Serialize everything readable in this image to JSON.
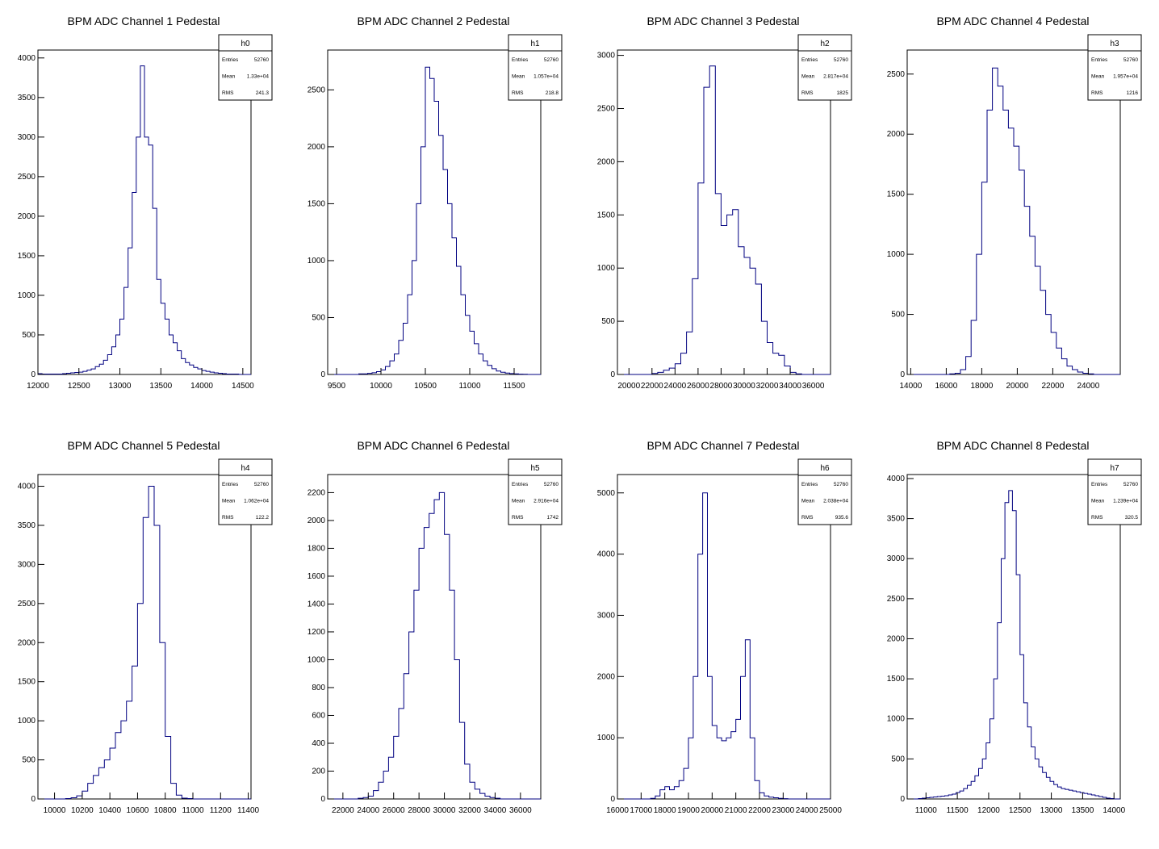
{
  "chart_data": [
    {
      "type": "histogram",
      "title": "BPM ADC Channel 1 Pedestal",
      "stats": {
        "name": "h0",
        "entries_label": "Entries",
        "entries": "52760",
        "mean_label": "Mean",
        "mean": "1.33e+04",
        "rms_label": "RMS",
        "rms": "241.3"
      },
      "xlim": [
        12000,
        14600
      ],
      "ylim": [
        0,
        4100
      ],
      "xticks": [
        12000,
        12500,
        13000,
        13500,
        14000,
        14500
      ],
      "yticks": [
        0,
        500,
        1000,
        1500,
        2000,
        2500,
        3000,
        3500,
        4000
      ],
      "x": [
        12000,
        12050,
        12100,
        12150,
        12200,
        12250,
        12300,
        12350,
        12400,
        12450,
        12500,
        12550,
        12600,
        12650,
        12700,
        12750,
        12800,
        12850,
        12900,
        12950,
        13000,
        13050,
        13100,
        13150,
        13200,
        13250,
        13300,
        13350,
        13400,
        13450,
        13500,
        13550,
        13600,
        13650,
        13700,
        13750,
        13800,
        13850,
        13900,
        13950,
        14000,
        14050,
        14100,
        14150,
        14200,
        14250,
        14300,
        14350,
        14400,
        14450,
        14500,
        14550
      ],
      "values": [
        10,
        5,
        5,
        5,
        5,
        5,
        10,
        15,
        20,
        25,
        30,
        40,
        55,
        70,
        100,
        130,
        180,
        250,
        350,
        500,
        700,
        1100,
        1600,
        2300,
        3000,
        3900,
        3000,
        2900,
        2100,
        1200,
        900,
        700,
        500,
        400,
        300,
        200,
        150,
        120,
        90,
        70,
        50,
        40,
        30,
        20,
        15,
        10,
        5,
        5,
        5,
        0,
        0,
        0
      ]
    },
    {
      "type": "histogram",
      "title": "BPM ADC Channel 2 Pedestal",
      "stats": {
        "name": "h1",
        "entries_label": "Entries",
        "entries": "52760",
        "mean_label": "Mean",
        "mean": "1.057e+04",
        "rms_label": "RMS",
        "rms": "218.8"
      },
      "xlim": [
        9400,
        11800
      ],
      "ylim": [
        0,
        2850
      ],
      "xticks": [
        9500,
        10000,
        10500,
        11000,
        11500
      ],
      "yticks": [
        0,
        500,
        1000,
        1500,
        2000,
        2500
      ],
      "x": [
        9400,
        9450,
        9500,
        9550,
        9600,
        9650,
        9700,
        9750,
        9800,
        9850,
        9900,
        9950,
        10000,
        10050,
        10100,
        10150,
        10200,
        10250,
        10300,
        10350,
        10400,
        10450,
        10500,
        10550,
        10600,
        10650,
        10700,
        10750,
        10800,
        10850,
        10900,
        10950,
        11000,
        11050,
        11100,
        11150,
        11200,
        11250,
        11300,
        11350,
        11400,
        11450,
        11500,
        11550,
        11600,
        11650,
        11700,
        11750
      ],
      "values": [
        0,
        0,
        0,
        0,
        0,
        0,
        0,
        5,
        5,
        10,
        15,
        25,
        40,
        70,
        120,
        180,
        300,
        450,
        700,
        1000,
        1500,
        2000,
        2700,
        2600,
        2400,
        2100,
        1800,
        1500,
        1200,
        950,
        700,
        520,
        380,
        270,
        180,
        120,
        80,
        50,
        30,
        20,
        12,
        8,
        5,
        3,
        2,
        0,
        0,
        0
      ]
    },
    {
      "type": "histogram",
      "title": "BPM ADC Channel 3 Pedestal",
      "stats": {
        "name": "h2",
        "entries_label": "Entries",
        "entries": "52760",
        "mean_label": "Mean",
        "mean": "2.817e+04",
        "rms_label": "RMS",
        "rms": "1825"
      },
      "xlim": [
        19000,
        37500
      ],
      "ylim": [
        0,
        3050
      ],
      "xticks": [
        20000,
        22000,
        24000,
        26000,
        28000,
        30000,
        32000,
        34000,
        36000
      ],
      "yticks": [
        0,
        500,
        1000,
        1500,
        2000,
        2500,
        3000
      ],
      "x": [
        19000,
        19500,
        20000,
        20500,
        21000,
        21500,
        22000,
        22500,
        23000,
        23500,
        24000,
        24500,
        25000,
        25500,
        26000,
        26500,
        27000,
        27500,
        28000,
        28500,
        29000,
        29500,
        30000,
        30500,
        31000,
        31500,
        32000,
        32500,
        33000,
        33500,
        34000,
        34500,
        35000,
        35500,
        36000,
        36500,
        37000
      ],
      "values": [
        0,
        0,
        0,
        0,
        0,
        0,
        10,
        20,
        40,
        60,
        100,
        200,
        400,
        900,
        1800,
        2700,
        2900,
        1700,
        1400,
        1500,
        1550,
        1200,
        1100,
        1000,
        850,
        500,
        300,
        200,
        180,
        80,
        20,
        5,
        0,
        0,
        0,
        0,
        0
      ]
    },
    {
      "type": "histogram",
      "title": "BPM ADC Channel 4 Pedestal",
      "stats": {
        "name": "h3",
        "entries_label": "Entries",
        "entries": "52760",
        "mean_label": "Mean",
        "mean": "1.957e+04",
        "rms_label": "RMS",
        "rms": "1216"
      },
      "xlim": [
        13800,
        25800
      ],
      "ylim": [
        0,
        2700
      ],
      "xticks": [
        14000,
        16000,
        18000,
        20000,
        22000,
        24000
      ],
      "yticks": [
        0,
        500,
        1000,
        1500,
        2000,
        2500
      ],
      "x": [
        13800,
        14100,
        14400,
        14700,
        15000,
        15300,
        15600,
        15900,
        16200,
        16500,
        16800,
        17100,
        17400,
        17700,
        18000,
        18300,
        18600,
        18900,
        19200,
        19500,
        19800,
        20100,
        20400,
        20700,
        21000,
        21300,
        21600,
        21900,
        22200,
        22500,
        22800,
        23100,
        23400,
        23700,
        24000,
        24300,
        24600,
        24900,
        25200,
        25500
      ],
      "values": [
        0,
        0,
        0,
        0,
        0,
        0,
        0,
        0,
        5,
        10,
        40,
        150,
        450,
        1000,
        1600,
        2200,
        2550,
        2400,
        2200,
        2050,
        1900,
        1700,
        1400,
        1150,
        900,
        700,
        500,
        350,
        220,
        130,
        70,
        40,
        20,
        10,
        5,
        0,
        0,
        0,
        0,
        0
      ]
    },
    {
      "type": "histogram",
      "title": "BPM ADC Channel 5 Pedestal",
      "stats": {
        "name": "h4",
        "entries_label": "Entries",
        "entries": "52760",
        "mean_label": "Mean",
        "mean": "1.062e+04",
        "rms_label": "RMS",
        "rms": "122.2"
      },
      "xlim": [
        9880,
        11420
      ],
      "ylim": [
        0,
        4150
      ],
      "xticks": [
        10000,
        10200,
        10400,
        10600,
        10800,
        11000,
        11200,
        11400
      ],
      "yticks": [
        0,
        500,
        1000,
        1500,
        2000,
        2500,
        3000,
        3500,
        4000
      ],
      "x": [
        9880,
        9920,
        9960,
        10000,
        10040,
        10080,
        10120,
        10160,
        10200,
        10240,
        10280,
        10320,
        10360,
        10400,
        10440,
        10480,
        10520,
        10560,
        10600,
        10640,
        10680,
        10720,
        10760,
        10800,
        10840,
        10880,
        10920,
        10960,
        11000,
        11040,
        11080,
        11120,
        11160,
        11200,
        11240,
        11280,
        11320,
        11360,
        11400
      ],
      "values": [
        0,
        0,
        0,
        0,
        0,
        5,
        15,
        40,
        100,
        200,
        300,
        400,
        500,
        650,
        850,
        1000,
        1250,
        1700,
        2500,
        3600,
        4000,
        3500,
        2000,
        800,
        200,
        50,
        10,
        5,
        0,
        0,
        0,
        0,
        0,
        0,
        0,
        0,
        0,
        0,
        0
      ]
    },
    {
      "type": "histogram",
      "title": "BPM ADC Channel 6 Pedestal",
      "stats": {
        "name": "h5",
        "entries_label": "Entries",
        "entries": "52760",
        "mean_label": "Mean",
        "mean": "2.916e+04",
        "rms_label": "RMS",
        "rms": "1742"
      },
      "xlim": [
        20800,
        37600
      ],
      "ylim": [
        0,
        2330
      ],
      "xticks": [
        22000,
        24000,
        26000,
        28000,
        30000,
        32000,
        34000,
        36000
      ],
      "yticks": [
        0,
        200,
        400,
        600,
        800,
        1000,
        1200,
        1400,
        1600,
        1800,
        2000,
        2200
      ],
      "x": [
        20800,
        21200,
        21600,
        22000,
        22400,
        22800,
        23200,
        23600,
        24000,
        24400,
        24800,
        25200,
        25600,
        26000,
        26400,
        26800,
        27200,
        27600,
        28000,
        28400,
        28800,
        29200,
        29600,
        30000,
        30400,
        30800,
        31200,
        31600,
        32000,
        32400,
        32800,
        33200,
        33600,
        34000,
        34400,
        34800,
        35200,
        35600,
        36000,
        36400,
        36800,
        37200
      ],
      "values": [
        0,
        0,
        0,
        0,
        0,
        0,
        5,
        10,
        20,
        60,
        120,
        200,
        300,
        450,
        650,
        900,
        1200,
        1500,
        1800,
        1950,
        2050,
        2150,
        2200,
        1900,
        1500,
        1000,
        550,
        250,
        120,
        70,
        40,
        20,
        10,
        5,
        0,
        0,
        0,
        0,
        0,
        0,
        0,
        0
      ]
    },
    {
      "type": "histogram",
      "title": "BPM ADC Channel 7 Pedestal",
      "stats": {
        "name": "h6",
        "entries_label": "Entries",
        "entries": "52760",
        "mean_label": "Mean",
        "mean": "2.038e+04",
        "rms_label": "RMS",
        "rms": "935.6"
      },
      "xlim": [
        16000,
        25000
      ],
      "ylim": [
        0,
        5300
      ],
      "xticks": [
        16000,
        17000,
        18000,
        19000,
        20000,
        21000,
        22000,
        23000,
        24000,
        25000
      ],
      "yticks": [
        0,
        1000,
        2000,
        3000,
        4000,
        5000
      ],
      "x": [
        16000,
        16200,
        16400,
        16600,
        16800,
        17000,
        17200,
        17400,
        17600,
        17800,
        18000,
        18200,
        18400,
        18600,
        18800,
        19000,
        19200,
        19400,
        19600,
        19800,
        20000,
        20200,
        20400,
        20600,
        20800,
        21000,
        21200,
        21400,
        21600,
        21800,
        22000,
        22200,
        22400,
        22600,
        22800,
        23000,
        23200,
        23400,
        23600,
        23800,
        24000,
        24200,
        24400,
        24600,
        24800
      ],
      "values": [
        0,
        0,
        0,
        0,
        0,
        0,
        0,
        10,
        50,
        150,
        200,
        150,
        200,
        300,
        500,
        1000,
        2000,
        4000,
        5000,
        2000,
        1200,
        1000,
        950,
        1000,
        1100,
        1300,
        2000,
        2600,
        1000,
        300,
        100,
        50,
        30,
        20,
        10,
        5,
        0,
        0,
        0,
        0,
        0,
        0,
        0,
        0,
        0
      ]
    },
    {
      "type": "histogram",
      "title": "BPM ADC Channel 8 Pedestal",
      "stats": {
        "name": "h7",
        "entries_label": "Entries",
        "entries": "52760",
        "mean_label": "Mean",
        "mean": "1.239e+04",
        "rms_label": "RMS",
        "rms": "320.5"
      },
      "xlim": [
        10700,
        14100
      ],
      "ylim": [
        0,
        4050
      ],
      "xticks": [
        11000,
        11500,
        12000,
        12500,
        13000,
        13500,
        14000
      ],
      "yticks": [
        0,
        500,
        1000,
        1500,
        2000,
        2500,
        3000,
        3500,
        4000
      ],
      "x": [
        10700,
        10760,
        10820,
        10880,
        10940,
        11000,
        11060,
        11120,
        11180,
        11240,
        11300,
        11360,
        11420,
        11480,
        11540,
        11600,
        11660,
        11720,
        11780,
        11840,
        11900,
        11960,
        12020,
        12080,
        12140,
        12200,
        12260,
        12320,
        12380,
        12440,
        12500,
        12560,
        12620,
        12680,
        12740,
        12800,
        12860,
        12920,
        12980,
        13040,
        13100,
        13160,
        13220,
        13280,
        13340,
        13400,
        13460,
        13520,
        13580,
        13640,
        13700,
        13760,
        13820,
        13880,
        13940,
        14000,
        14060
      ],
      "values": [
        0,
        0,
        0,
        5,
        10,
        15,
        20,
        25,
        30,
        35,
        40,
        50,
        60,
        80,
        100,
        130,
        170,
        220,
        290,
        380,
        500,
        700,
        1000,
        1500,
        2200,
        3000,
        3700,
        3850,
        3600,
        2800,
        1800,
        1200,
        900,
        650,
        500,
        400,
        330,
        270,
        220,
        180,
        150,
        130,
        120,
        110,
        100,
        90,
        80,
        70,
        60,
        50,
        40,
        30,
        20,
        10,
        5,
        0,
        0
      ]
    }
  ]
}
